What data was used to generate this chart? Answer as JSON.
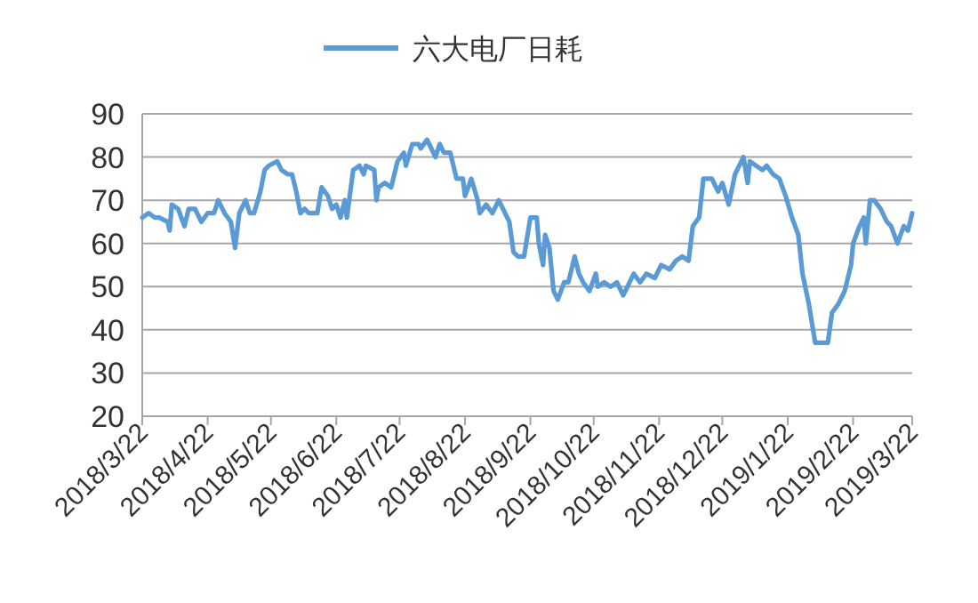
{
  "chart_data": {
    "type": "line",
    "series": [
      {
        "name": "六大电厂日耗",
        "color": "#5b9bd5",
        "x": [
          "2018-03-22",
          "2018-03-25",
          "2018-03-28",
          "2018-03-30",
          "2018-04-03",
          "2018-04-04",
          "2018-04-05",
          "2018-04-08",
          "2018-04-11",
          "2018-04-13",
          "2018-04-16",
          "2018-04-19",
          "2018-04-22",
          "2018-04-25",
          "2018-04-27",
          "2018-04-30",
          "2018-05-03",
          "2018-05-05",
          "2018-05-07",
          "2018-05-10",
          "2018-05-12",
          "2018-05-14",
          "2018-05-17",
          "2018-05-19",
          "2018-05-21",
          "2018-05-25",
          "2018-05-27",
          "2018-05-30",
          "2018-06-01",
          "2018-06-03",
          "2018-06-05",
          "2018-06-07",
          "2018-06-09",
          "2018-06-13",
          "2018-06-15",
          "2018-06-18",
          "2018-06-20",
          "2018-06-22",
          "2018-06-24",
          "2018-06-26",
          "2018-06-27",
          "2018-06-30",
          "2018-07-03",
          "2018-07-05",
          "2018-07-06",
          "2018-07-10",
          "2018-07-11",
          "2018-07-12",
          "2018-07-15",
          "2018-07-18",
          "2018-07-21",
          "2018-07-24",
          "2018-07-25",
          "2018-07-28",
          "2018-07-31",
          "2018-08-01",
          "2018-08-04",
          "2018-08-07",
          "2018-08-08",
          "2018-08-10",
          "2018-08-12",
          "2018-08-15",
          "2018-08-18",
          "2018-08-21",
          "2018-08-22",
          "2018-08-25",
          "2018-08-28",
          "2018-08-29",
          "2018-09-01",
          "2018-09-04",
          "2018-09-07",
          "2018-09-09",
          "2018-09-12",
          "2018-09-14",
          "2018-09-16",
          "2018-09-19",
          "2018-09-22",
          "2018-09-25",
          "2018-09-26",
          "2018-09-28",
          "2018-09-29",
          "2018-10-01",
          "2018-10-03",
          "2018-10-05",
          "2018-10-08",
          "2018-10-10",
          "2018-10-13",
          "2018-10-15",
          "2018-10-17",
          "2018-10-20",
          "2018-10-23",
          "2018-10-24",
          "2018-10-27",
          "2018-10-30",
          "2018-11-02",
          "2018-11-05",
          "2018-11-07",
          "2018-11-10",
          "2018-11-13",
          "2018-11-16",
          "2018-11-20",
          "2018-11-23",
          "2018-11-27",
          "2018-11-30",
          "2018-12-03",
          "2018-12-06",
          "2018-12-08",
          "2018-12-11",
          "2018-12-13",
          "2018-12-17",
          "2018-12-20",
          "2018-12-22",
          "2018-12-25",
          "2018-12-28",
          "2019-01-01",
          "2019-01-03",
          "2019-01-04",
          "2019-01-07",
          "2019-01-10",
          "2019-01-12",
          "2019-01-15",
          "2019-01-18",
          "2019-01-21",
          "2019-01-24",
          "2019-01-27",
          "2019-01-29",
          "2019-02-01",
          "2019-02-04",
          "2019-02-07",
          "2019-02-10",
          "2019-02-12",
          "2019-02-15",
          "2019-02-18",
          "2019-02-21",
          "2019-02-22",
          "2019-02-25",
          "2019-02-27",
          "2019-02-28",
          "2019-03-02",
          "2019-03-04",
          "2019-03-07",
          "2019-03-10",
          "2019-03-12",
          "2019-03-15",
          "2019-03-18",
          "2019-03-20",
          "2019-03-22"
        ],
        "values": [
          66,
          67,
          66,
          66,
          65,
          63,
          69,
          68,
          64,
          68,
          68,
          65,
          67,
          67,
          70,
          67,
          65,
          59,
          67,
          70,
          67,
          67,
          72,
          77,
          78,
          79,
          77,
          76,
          76,
          72,
          67,
          68,
          67,
          67,
          73,
          71,
          68,
          69,
          66,
          70,
          66,
          77,
          78,
          76,
          78,
          77,
          70,
          73,
          74,
          73,
          79,
          81,
          78,
          83,
          83,
          82,
          84,
          81,
          80,
          83,
          81,
          81,
          75,
          75,
          71,
          75,
          70,
          67,
          69,
          67,
          70,
          68,
          65,
          58,
          57,
          57,
          66,
          66,
          60,
          55,
          62,
          59,
          49,
          47,
          51,
          51,
          57,
          53,
          51,
          49,
          53,
          50,
          51,
          50,
          51,
          48,
          50,
          53,
          51,
          53,
          52,
          55,
          54,
          56,
          57,
          56,
          64,
          66,
          75,
          75,
          72,
          74,
          69,
          76,
          80,
          74,
          79,
          78,
          77,
          78,
          76,
          75,
          71,
          66,
          62,
          53,
          46,
          37,
          37,
          37,
          44,
          46,
          49,
          55,
          60,
          64,
          66,
          60,
          70,
          70,
          68,
          65,
          64,
          60,
          64,
          63,
          67
        ]
      }
    ],
    "xlim": [
      "2018-03-22",
      "2019-03-22"
    ],
    "xticks": [
      {
        "value": "2018-03-22",
        "label": "2018/3/22"
      },
      {
        "value": "2018-04-22",
        "label": "2018/4/22"
      },
      {
        "value": "2018-05-22",
        "label": "2018/5/22"
      },
      {
        "value": "2018-06-22",
        "label": "2018/6/22"
      },
      {
        "value": "2018-07-22",
        "label": "2018/7/22"
      },
      {
        "value": "2018-08-22",
        "label": "2018/8/22"
      },
      {
        "value": "2018-09-22",
        "label": "2018/9/22"
      },
      {
        "value": "2018-10-22",
        "label": "2018/10/22"
      },
      {
        "value": "2018-11-22",
        "label": "2018/11/22"
      },
      {
        "value": "2018-12-22",
        "label": "2018/12/22"
      },
      {
        "value": "2019-01-22",
        "label": "2019/1/22"
      },
      {
        "value": "2019-02-22",
        "label": "2019/2/22"
      },
      {
        "value": "2019-03-22",
        "label": "2019/3/22"
      }
    ],
    "ylim": [
      20,
      90
    ],
    "yticks": [
      20,
      30,
      40,
      50,
      60,
      70,
      80,
      90
    ],
    "grid": "y",
    "legend": "top",
    "marker": "none",
    "line_style": "solid"
  }
}
